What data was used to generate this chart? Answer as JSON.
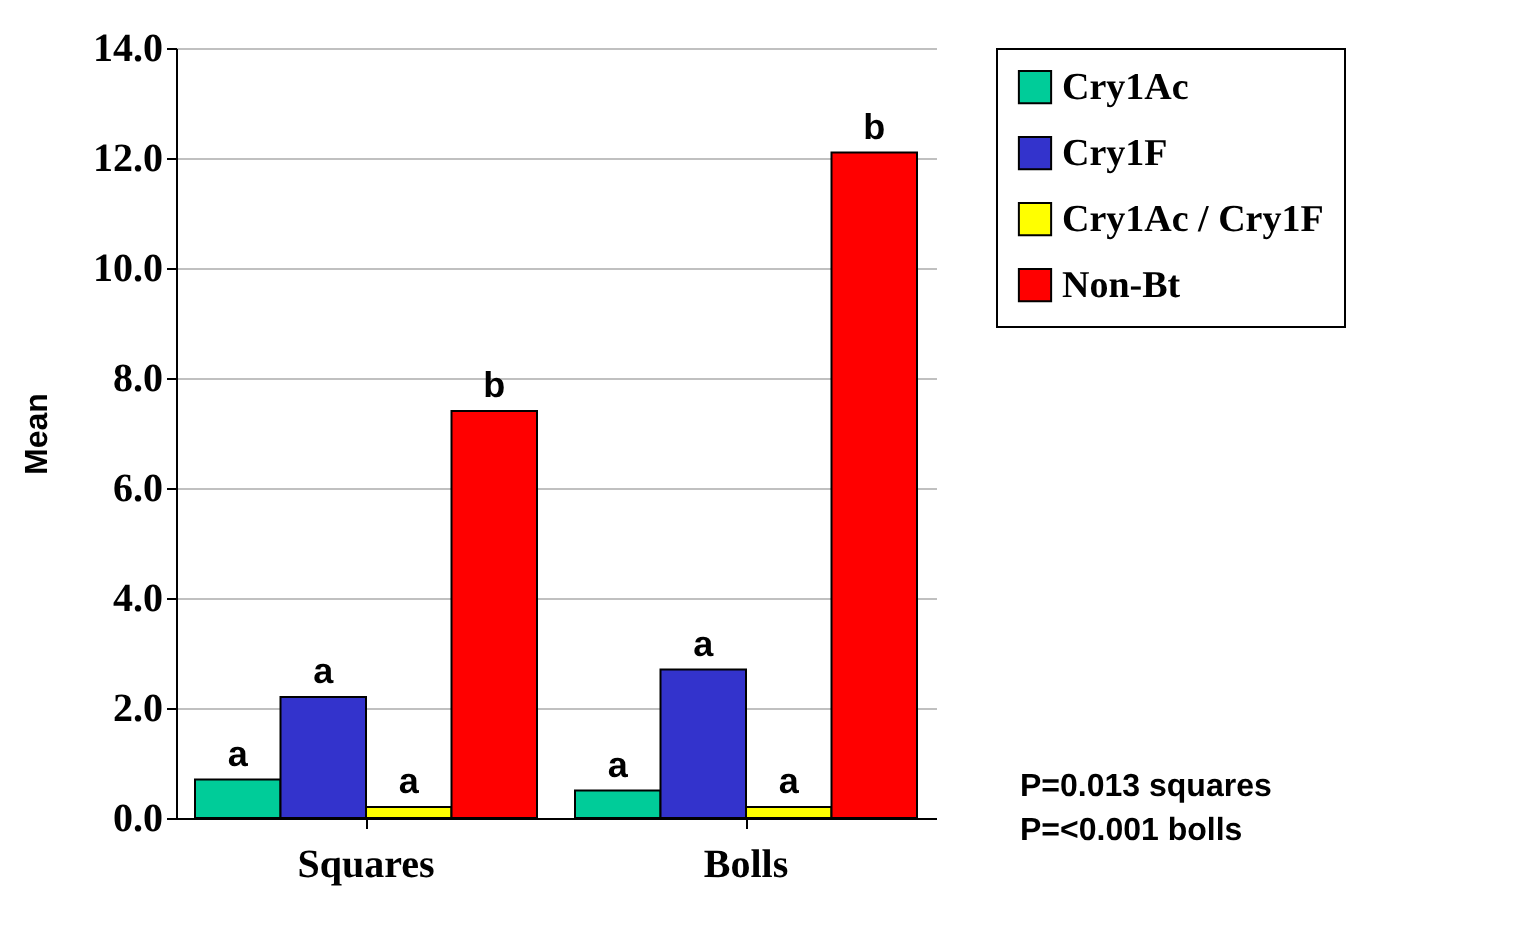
{
  "chart_data": {
    "type": "bar",
    "ylabel": "Mean",
    "categories": [
      "Squares",
      "Bolls"
    ],
    "series": [
      {
        "name": "Cry1Ac",
        "color": "#00cc99",
        "values": [
          0.7,
          0.5
        ],
        "value_labels": [
          "a",
          "a"
        ]
      },
      {
        "name": "Cry1F",
        "color": "#3333cc",
        "values": [
          2.2,
          2.7
        ],
        "value_labels": [
          "a",
          "a"
        ]
      },
      {
        "name": "Cry1Ac / Cry1F",
        "color": "#ffff00",
        "values": [
          0.2,
          0.2
        ],
        "value_labels": [
          "a",
          "a"
        ]
      },
      {
        "name": "Non-Bt",
        "color": "#ff0000",
        "values": [
          7.4,
          12.1
        ],
        "value_labels": [
          "b",
          "b"
        ]
      }
    ],
    "ylim": [
      0,
      14
    ],
    "yticks": [
      {
        "value": 0,
        "label": "0.0"
      },
      {
        "value": 2,
        "label": "2.0"
      },
      {
        "value": 4,
        "label": "4.0"
      },
      {
        "value": 6,
        "label": "6.0"
      },
      {
        "value": 8,
        "label": "8.0"
      },
      {
        "value": 10,
        "label": "10.0"
      },
      {
        "value": 12,
        "label": "12.0"
      },
      {
        "value": 14,
        "label": "14.0"
      }
    ],
    "grid": "y",
    "legend": "right",
    "annotations": [
      "P=0.013 squares",
      "P=<0.001 bolls"
    ]
  }
}
